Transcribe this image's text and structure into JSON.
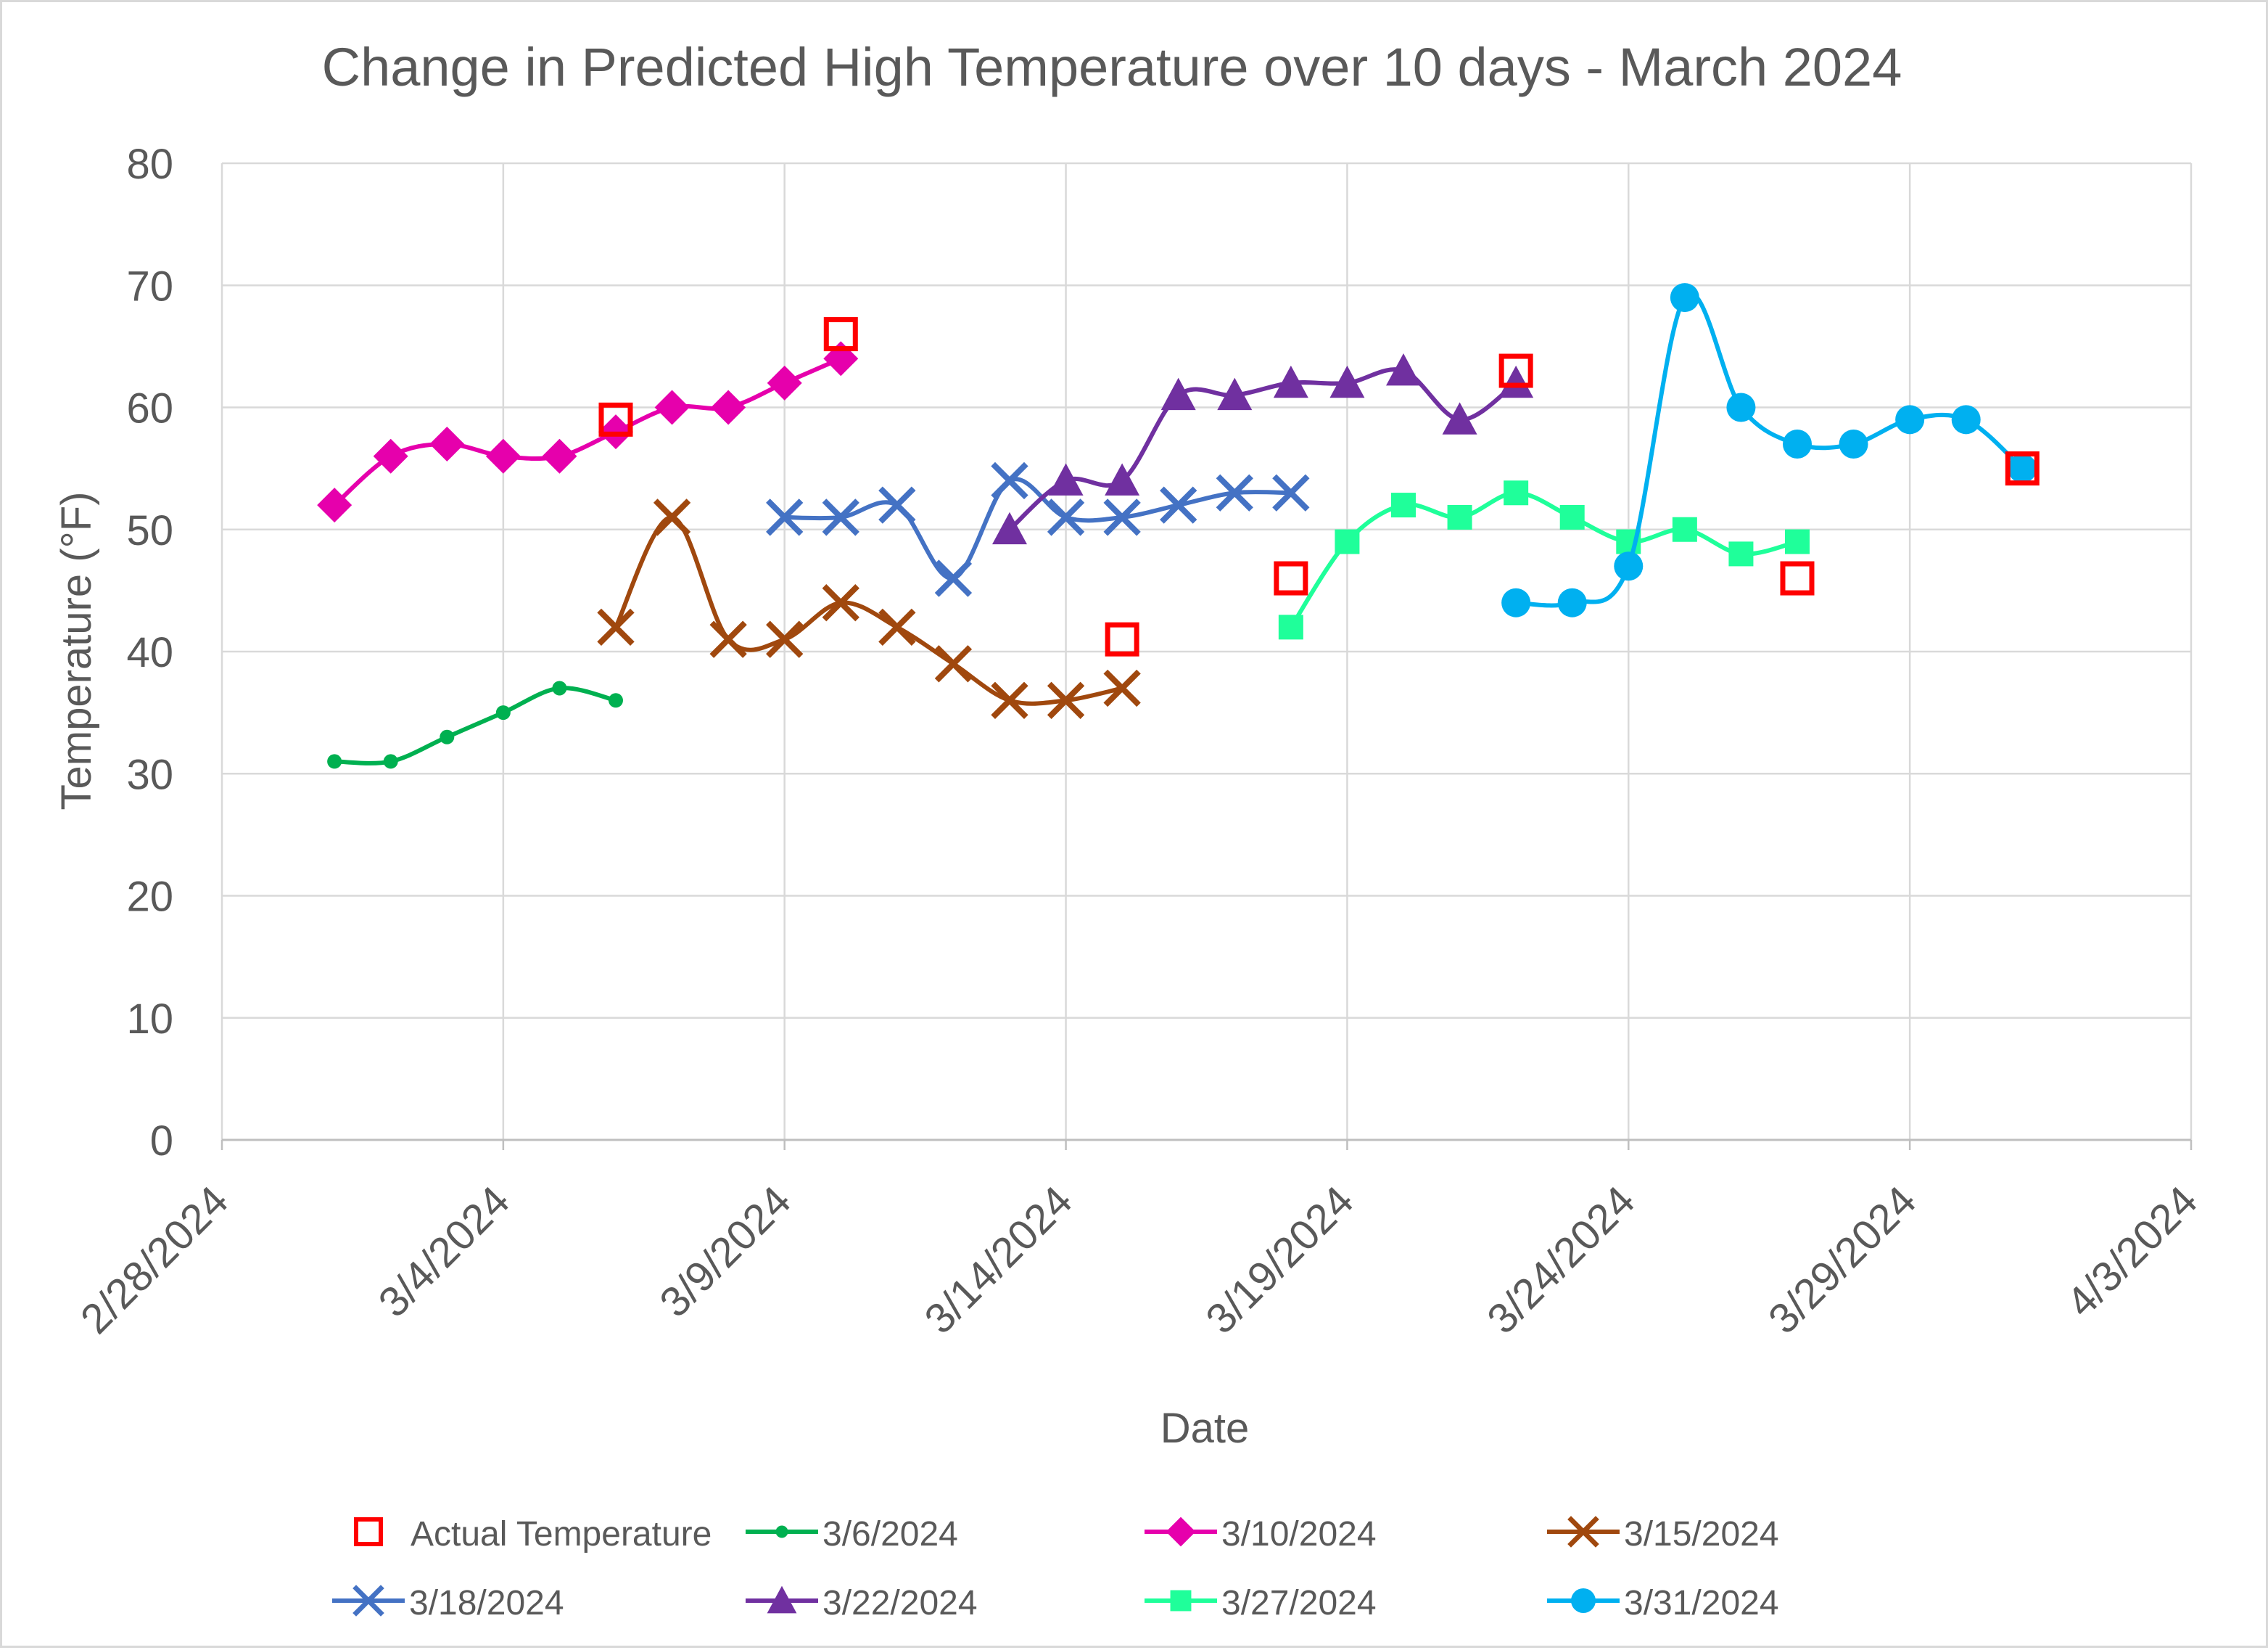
{
  "chart_data": {
    "type": "line",
    "title": "Change in Predicted High Temperature over 10 days - March 2024",
    "xlabel": "Date",
    "ylabel": "Temperature (°F)",
    "ylim": [
      0,
      80
    ],
    "yticks": [
      0,
      10,
      20,
      30,
      40,
      50,
      60,
      70,
      80
    ],
    "xlim_days": [
      0,
      35
    ],
    "xticks": [
      {
        "day": 0,
        "label": "2/28/2024"
      },
      {
        "day": 5,
        "label": "3/4/2024"
      },
      {
        "day": 10,
        "label": "3/9/2024"
      },
      {
        "day": 15,
        "label": "3/14/2024"
      },
      {
        "day": 20,
        "label": "3/19/2024"
      },
      {
        "day": 25,
        "label": "3/24/2024"
      },
      {
        "day": 30,
        "label": "3/29/2024"
      },
      {
        "day": 35,
        "label": "4/3/2024"
      }
    ],
    "x_unit_note": "x values are days since 2/28/2024",
    "grid": true,
    "legend_position": "bottom",
    "series": [
      {
        "name": "Actual Temperature",
        "color": "#ff0000",
        "marker": "open-square",
        "line": false,
        "x": [
          7,
          11,
          16,
          19,
          23,
          28,
          32
        ],
        "y": [
          59,
          66,
          41,
          46,
          63,
          46,
          55
        ]
      },
      {
        "name": "3/6/2024",
        "color": "#00b050",
        "marker": "circle-small",
        "line": true,
        "x": [
          2,
          3,
          4,
          5,
          6,
          7
        ],
        "y": [
          31,
          31,
          33,
          35,
          37,
          36
        ]
      },
      {
        "name": "3/10/2024",
        "color": "#e600ac",
        "marker": "diamond",
        "line": true,
        "x": [
          2,
          3,
          4,
          5,
          6,
          7,
          8,
          9,
          10,
          11
        ],
        "y": [
          52,
          56,
          57,
          56,
          56,
          58,
          60,
          60,
          62,
          64
        ]
      },
      {
        "name": "3/15/2024",
        "color": "#a0480e",
        "marker": "x",
        "line": true,
        "x": [
          7,
          8,
          9,
          10,
          11,
          12,
          13,
          14,
          15,
          16
        ],
        "y": [
          42,
          51,
          41,
          41,
          44,
          42,
          39,
          36,
          36,
          37
        ]
      },
      {
        "name": "3/18/2024",
        "color": "#4472c4",
        "marker": "x",
        "line": true,
        "x": [
          10,
          11,
          12,
          13,
          14,
          15,
          16,
          17,
          18,
          19
        ],
        "y": [
          51,
          51,
          52,
          46,
          54,
          51,
          51,
          52,
          53,
          53
        ]
      },
      {
        "name": "3/22/2024",
        "color": "#7030a0",
        "marker": "triangle",
        "line": true,
        "x": [
          14,
          15,
          16,
          17,
          18,
          19,
          20,
          21,
          22,
          23
        ],
        "y": [
          50,
          54,
          54,
          61,
          61,
          62,
          62,
          63,
          59,
          62
        ]
      },
      {
        "name": "3/27/2024",
        "color": "#1fff9a",
        "marker": "square",
        "line": true,
        "x": [
          19,
          20,
          21,
          22,
          23,
          24,
          25,
          26,
          27,
          28
        ],
        "y": [
          42,
          49,
          52,
          51,
          53,
          51,
          49,
          50,
          48,
          49
        ]
      },
      {
        "name": "3/31/2024",
        "color": "#00b0f0",
        "marker": "circle",
        "line": true,
        "x": [
          23,
          24,
          25,
          26,
          27,
          28,
          29,
          30,
          31,
          32
        ],
        "y": [
          44,
          44,
          47,
          69,
          60,
          57,
          57,
          59,
          59,
          55
        ]
      }
    ]
  }
}
